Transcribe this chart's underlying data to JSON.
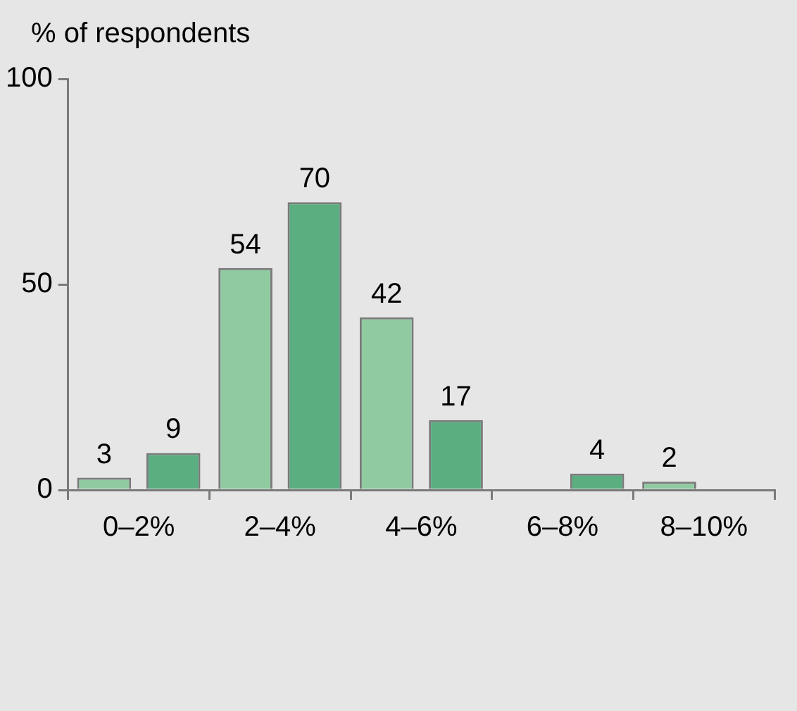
{
  "chart_data": {
    "type": "bar",
    "ylabel": "% of respondents",
    "categories": [
      "0–2%",
      "2–4%",
      "4–6%",
      "6–8%",
      "8–10%"
    ],
    "series": [
      {
        "color": "#8fcaa0",
        "values": [
          3,
          54,
          42,
          null,
          2
        ]
      },
      {
        "color": "#5aae80",
        "values": [
          9,
          70,
          17,
          4,
          null
        ]
      }
    ],
    "ylim": [
      0,
      100
    ],
    "yticks": [
      0,
      50,
      100
    ],
    "grid": false,
    "legend": false,
    "data_labels": true
  }
}
